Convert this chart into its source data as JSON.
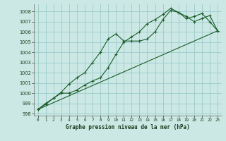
{
  "xlabel": "Graphe pression niveau de la mer (hPa)",
  "background_color": "#cce8e4",
  "grid_color": "#99cccc",
  "line_color": "#1a5c2a",
  "xlim": [
    -0.5,
    23.5
  ],
  "ylim": [
    997.8,
    1008.7
  ],
  "yticks": [
    998,
    999,
    1000,
    1001,
    1002,
    1003,
    1004,
    1005,
    1006,
    1007,
    1008
  ],
  "xticks": [
    0,
    1,
    2,
    3,
    4,
    5,
    6,
    7,
    8,
    9,
    10,
    11,
    12,
    13,
    14,
    15,
    16,
    17,
    18,
    19,
    20,
    21,
    22,
    23
  ],
  "line1_x": [
    0,
    1,
    2,
    3,
    4,
    5,
    6,
    7,
    8,
    9,
    10,
    11,
    12,
    13,
    14,
    15,
    16,
    17,
    18,
    19,
    20,
    21,
    22,
    23
  ],
  "line1_y": [
    998.4,
    998.9,
    999.5,
    1000.1,
    1000.9,
    1001.5,
    1002.0,
    1003.0,
    1004.0,
    1005.3,
    1005.8,
    1005.1,
    1005.1,
    1005.1,
    1005.3,
    1006.0,
    1007.2,
    1008.1,
    1007.9,
    1007.3,
    1007.5,
    1007.8,
    1007.0,
    1006.1
  ],
  "line2_x": [
    0,
    1,
    2,
    3,
    4,
    5,
    6,
    7,
    8,
    9,
    10,
    11,
    12,
    13,
    14,
    15,
    16,
    17,
    18,
    19,
    20,
    21,
    22,
    23
  ],
  "line2_y": [
    998.4,
    999.0,
    999.5,
    1000.0,
    1000.0,
    1000.3,
    1000.8,
    1001.2,
    1001.5,
    1002.5,
    1003.8,
    1005.0,
    1005.5,
    1006.0,
    1006.8,
    1007.2,
    1007.7,
    1008.3,
    1007.9,
    1007.5,
    1007.0,
    1007.3,
    1007.6,
    1006.1
  ],
  "line3_x": [
    0,
    23
  ],
  "line3_y": [
    998.4,
    1006.1
  ]
}
